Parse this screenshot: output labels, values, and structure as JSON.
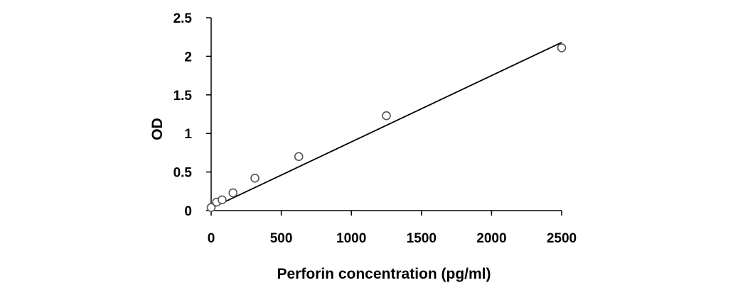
{
  "chart_data": {
    "type": "scatter",
    "xlabel": "Perforin concentration (pg/ml)",
    "ylabel": "OD",
    "xlim": [
      0,
      2500
    ],
    "ylim": [
      0,
      2.5
    ],
    "x_ticks": [
      0,
      500,
      1000,
      1500,
      2000,
      2500
    ],
    "y_ticks": [
      0,
      0.5,
      1,
      1.5,
      2,
      2.5
    ],
    "x_tick_labels": [
      "0",
      "500",
      "1000",
      "1500",
      "2000",
      "2500"
    ],
    "y_tick_labels": [
      "0",
      "0.5",
      "1",
      "1.5",
      "2",
      "2.5"
    ],
    "grid": false,
    "legend": "none",
    "series": [
      {
        "x": [
          0,
          39,
          78,
          156,
          312,
          625,
          1250,
          2500
        ],
        "y": [
          0.04,
          0.11,
          0.14,
          0.23,
          0.42,
          0.7,
          1.23,
          2.11
        ],
        "marker": "open-circle",
        "color": "#555555"
      }
    ],
    "trendline": {
      "type": "linear",
      "from": [
        0,
        0.03
      ],
      "to": [
        2500,
        2.18
      ],
      "color": "#000000"
    }
  }
}
